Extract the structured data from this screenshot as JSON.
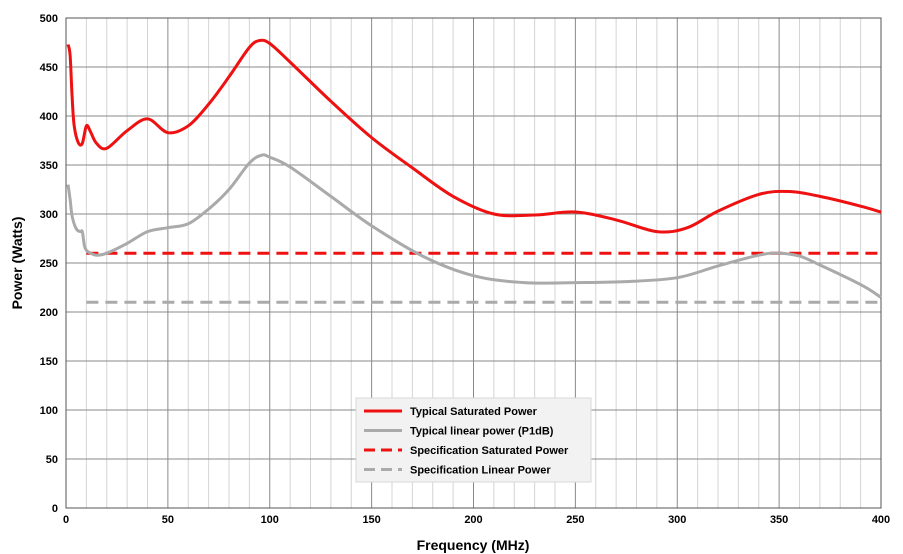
{
  "chart_data": {
    "type": "line",
    "xlabel": "Frequency (MHz)",
    "ylabel": "Power (Watts)",
    "xlim": [
      0,
      400
    ],
    "ylim": [
      0,
      500
    ],
    "xticks": [
      0,
      50,
      100,
      150,
      200,
      250,
      300,
      350,
      400
    ],
    "yticks": [
      0,
      50,
      100,
      150,
      200,
      250,
      300,
      350,
      400,
      450,
      500
    ],
    "grid": true,
    "legend_position": "bottom-center",
    "series": [
      {
        "name": "Typical Saturated Power",
        "color": "#ee1111",
        "style": "solid",
        "x": [
          1,
          2,
          3,
          4,
          6,
          8,
          10,
          12,
          15,
          20,
          30,
          40,
          50,
          60,
          70,
          80,
          90,
          95,
          100,
          110,
          130,
          150,
          170,
          190,
          210,
          230,
          250,
          270,
          290,
          305,
          320,
          340,
          355,
          370,
          390,
          400
        ],
        "y": [
          473,
          462,
          420,
          390,
          373,
          372,
          390,
          384,
          372,
          367,
          385,
          397,
          383,
          390,
          412,
          440,
          470,
          477,
          474,
          455,
          415,
          378,
          347,
          318,
          300,
          299,
          302,
          294,
          282,
          286,
          303,
          320,
          323,
          318,
          308,
          302
        ]
      },
      {
        "name": "Typical linear power (P1dB)",
        "color": "#aaaaaa",
        "style": "solid",
        "x": [
          1,
          2,
          3,
          5,
          7,
          8,
          9,
          10,
          12,
          15,
          20,
          30,
          40,
          50,
          60,
          70,
          80,
          90,
          96,
          100,
          110,
          130,
          150,
          175,
          200,
          225,
          250,
          275,
          300,
          320,
          340,
          350,
          360,
          370,
          390,
          400
        ],
        "y": [
          330,
          315,
          298,
          285,
          282,
          282,
          268,
          263,
          260,
          258,
          260,
          270,
          282,
          286,
          290,
          305,
          325,
          352,
          360,
          358,
          348,
          318,
          288,
          257,
          237,
          230,
          230,
          231,
          235,
          247,
          258,
          260,
          257,
          248,
          228,
          215
        ]
      },
      {
        "name": "Specification Saturated Power",
        "color": "#ee1111",
        "style": "dashed",
        "x": [
          10,
          400
        ],
        "y": [
          260,
          260
        ]
      },
      {
        "name": "Specification Linear Power",
        "color": "#aaaaaa",
        "style": "dashed",
        "x": [
          10,
          400
        ],
        "y": [
          210,
          210
        ]
      }
    ]
  }
}
